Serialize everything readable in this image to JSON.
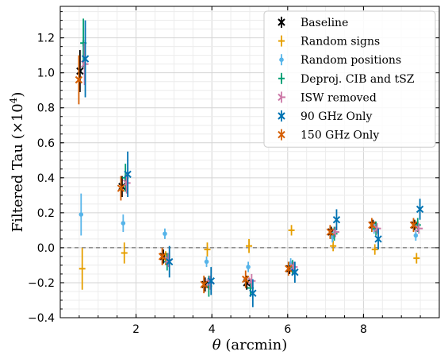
{
  "chart_data": {
    "type": "scatter",
    "title": "",
    "xlabel_symbol": "θ",
    "xlabel_unit": " (arcmin)",
    "ylabel_main": "Filtered Tau (×10",
    "ylabel_sup": "4",
    "ylabel_close": ")",
    "xlim": [
      0.0,
      10.0
    ],
    "ylim": [
      -0.4,
      1.38
    ],
    "x_ticks": [
      2,
      4,
      6,
      8
    ],
    "x_tick_labels": [
      "2",
      "4",
      "6",
      "8"
    ],
    "y_ticks": [
      -0.4,
      -0.2,
      0.0,
      0.2,
      0.4,
      0.6,
      0.8,
      1.0,
      1.2
    ],
    "y_tick_labels": [
      "−0.4",
      "−0.2",
      "0.0",
      "0.2",
      "0.4",
      "0.6",
      "0.8",
      "1.0",
      "1.2"
    ],
    "grid": true,
    "reference_line_y": 0.0,
    "legend_position": "top-right",
    "series": [
      {
        "name": "Baseline",
        "color": "#000000",
        "marker": "x",
        "x": [
          0.52,
          1.63,
          2.72,
          3.82,
          4.92,
          6.05,
          7.15,
          8.25,
          9.35
        ],
        "y": [
          1.01,
          0.35,
          -0.05,
          -0.21,
          -0.2,
          -0.12,
          0.09,
          0.13,
          0.13
        ],
        "err": [
          0.12,
          0.06,
          0.04,
          0.04,
          0.04,
          0.03,
          0.03,
          0.03,
          0.03
        ]
      },
      {
        "name": "Random signs",
        "color": "#E69F00",
        "marker": "|",
        "x": [
          0.58,
          1.69,
          2.78,
          3.88,
          4.98,
          6.1,
          7.2,
          8.3,
          9.4
        ],
        "y": [
          -0.12,
          -0.03,
          -0.06,
          -0.01,
          0.01,
          0.1,
          0.01,
          -0.01,
          -0.06
        ],
        "err": [
          0.12,
          0.06,
          0.04,
          0.04,
          0.04,
          0.03,
          0.03,
          0.03,
          0.03
        ]
      },
      {
        "name": "Random positions",
        "color": "#56B4E9",
        "marker": "o",
        "x": [
          0.55,
          1.66,
          2.76,
          3.86,
          4.96,
          6.08,
          7.18,
          8.28,
          9.38
        ],
        "y": [
          0.19,
          0.14,
          0.08,
          -0.08,
          -0.11,
          -0.09,
          0.06,
          0.11,
          0.07
        ],
        "err": [
          0.12,
          0.05,
          0.03,
          0.03,
          0.03,
          0.03,
          0.03,
          0.03,
          0.03
        ]
      },
      {
        "name": "Deproj. CIB and tSZ",
        "color": "#009E73",
        "marker": "+",
        "x": [
          0.61,
          1.72,
          2.82,
          3.92,
          5.02,
          6.13,
          7.23,
          8.33,
          9.43
        ],
        "y": [
          1.17,
          0.4,
          -0.08,
          -0.22,
          -0.23,
          -0.11,
          0.08,
          0.11,
          0.13
        ],
        "err": [
          0.14,
          0.08,
          0.05,
          0.06,
          0.05,
          0.04,
          0.04,
          0.04,
          0.04
        ]
      },
      {
        "name": "ISW removed",
        "color": "#CC79A7",
        "marker": "4",
        "x": [
          0.64,
          1.75,
          2.85,
          3.95,
          5.05,
          6.16,
          7.26,
          8.36,
          9.46
        ],
        "y": [
          1.05,
          0.37,
          -0.07,
          -0.2,
          -0.19,
          -0.11,
          0.09,
          0.11,
          0.11
        ],
        "err": [
          0.12,
          0.06,
          0.04,
          0.04,
          0.04,
          0.03,
          0.03,
          0.03,
          0.03
        ]
      },
      {
        "name": "90 GHz Only",
        "color": "#0072B2",
        "marker": "x",
        "x": [
          0.66,
          1.78,
          2.88,
          3.98,
          5.08,
          6.19,
          7.29,
          8.39,
          9.49
        ],
        "y": [
          1.08,
          0.42,
          -0.08,
          -0.19,
          -0.26,
          -0.14,
          0.16,
          0.05,
          0.22
        ],
        "err": [
          0.22,
          0.13,
          0.09,
          0.08,
          0.08,
          0.06,
          0.06,
          0.06,
          0.06
        ]
      },
      {
        "name": "150 GHz Only",
        "color": "#D55E00",
        "marker": "x",
        "x": [
          0.49,
          1.6,
          2.69,
          3.79,
          4.89,
          6.02,
          7.12,
          8.22,
          9.32
        ],
        "y": [
          0.96,
          0.34,
          -0.05,
          -0.21,
          -0.18,
          -0.12,
          0.09,
          0.13,
          0.13
        ],
        "err": [
          0.14,
          0.07,
          0.05,
          0.05,
          0.05,
          0.04,
          0.04,
          0.04,
          0.04
        ]
      }
    ]
  }
}
